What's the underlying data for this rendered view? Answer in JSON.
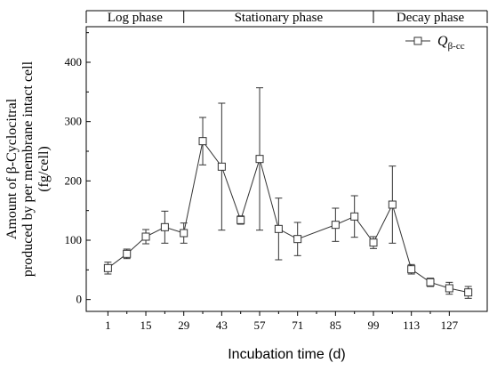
{
  "chart_data": {
    "type": "line",
    "x_label": "Incubation time (d)",
    "y_label_lines": [
      "Amount of β-Cyclocitral",
      "produced by per membrane intact cell",
      "(fg/cell)"
    ],
    "x_ticks": [
      1,
      15,
      29,
      43,
      57,
      71,
      85,
      99,
      113,
      127
    ],
    "y_ticks": [
      0,
      100,
      200,
      300,
      400
    ],
    "xlim": [
      -7,
      141
    ],
    "ylim": [
      -20,
      460
    ],
    "grid": false,
    "legend_position": "top-right",
    "phases": [
      {
        "label": "Log phase",
        "start": -7,
        "end": 29
      },
      {
        "label": "Stationary phase",
        "start": 29,
        "end": 99
      },
      {
        "label": "Decay phase",
        "start": 99,
        "end": 141
      }
    ],
    "series": [
      {
        "name": "Q",
        "name_subscript": "β-cc",
        "color": "#333333",
        "marker": "open-square",
        "x": [
          1,
          8,
          15,
          22,
          29,
          36,
          43,
          50,
          57,
          64,
          71,
          85,
          92,
          99,
          106,
          113,
          120,
          127,
          134
        ],
        "y": [
          53,
          77,
          106,
          122,
          112,
          267,
          224,
          134,
          237,
          119,
          102,
          126,
          140,
          96,
          160,
          51,
          29,
          19,
          12
        ],
        "err": [
          10,
          8,
          12,
          27,
          17,
          40,
          107,
          7,
          120,
          52,
          28,
          28,
          35,
          10,
          65,
          8,
          7,
          10,
          10
        ]
      }
    ]
  }
}
